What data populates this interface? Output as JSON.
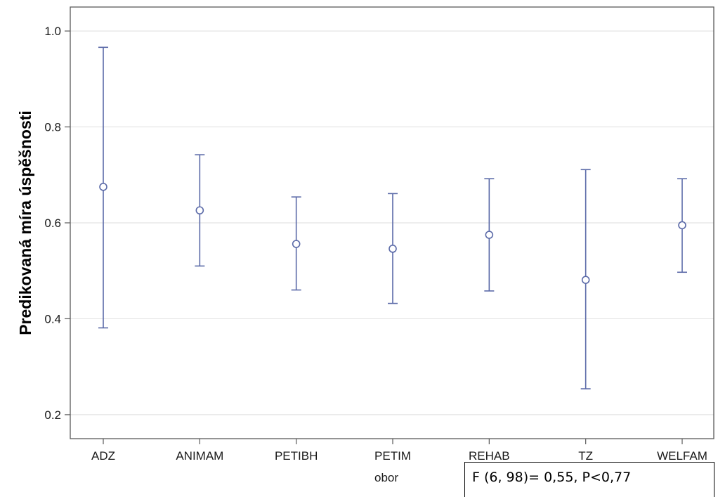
{
  "chart_data": {
    "type": "errorbar",
    "title": "",
    "xlabel": "obor",
    "ylabel": "Predikovaná míra úspěšnosti",
    "ylim": [
      0.15,
      1.05
    ],
    "yticks": [
      0.2,
      0.4,
      0.6,
      0.8,
      1.0
    ],
    "ytick_labels": [
      "0.2",
      "0.4",
      "0.6",
      "0.8",
      "1.0"
    ],
    "grid": true,
    "categories": [
      "ADZ",
      "ANIMAM",
      "PETIBH",
      "PETIM",
      "REHAB",
      "TZ",
      "WELFAM"
    ],
    "estimate": [
      0.675,
      0.626,
      0.556,
      0.546,
      0.575,
      0.481,
      0.595
    ],
    "lower": [
      0.381,
      0.51,
      0.46,
      0.432,
      0.458,
      0.254,
      0.497
    ],
    "upper": [
      0.966,
      0.742,
      0.654,
      0.661,
      0.692,
      0.711,
      0.692
    ],
    "colors": {
      "marker": "#5b6aa8",
      "grid": "#e3e3e3",
      "frame": "#5a5a5a"
    }
  },
  "annotation": "F (6, 98)= 0,55, P<0,77"
}
